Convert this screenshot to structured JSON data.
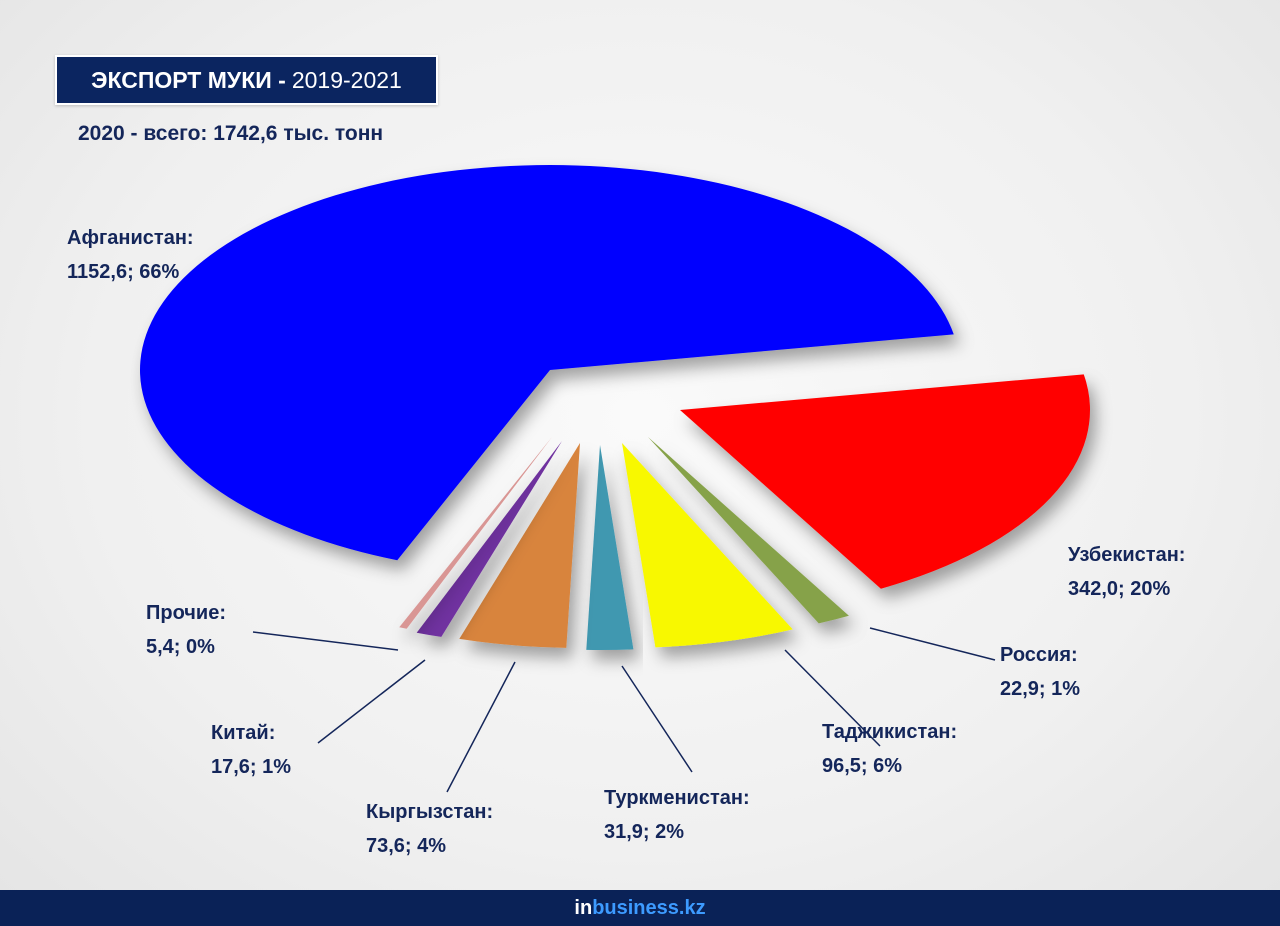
{
  "header": {
    "title_bold": "ЭКСПОРТ МУКИ -",
    "title_years": "2019-2021",
    "subtitle": "2020 - всего: 1742,6 тыс. тонн"
  },
  "chart_data": {
    "type": "pie",
    "title": "ЭКСПОРТ МУКИ - 2019-2021",
    "subtitle": "2020 - всего: 1742,6 тыс. тонн",
    "unit": "тыс. тонн",
    "slices": [
      {
        "name": "Узбекистан:",
        "value": 342.0,
        "value_label": "342,0; 20%",
        "percent": 20,
        "color": "#ff0000"
      },
      {
        "name": "Россия:",
        "value": 22.9,
        "value_label": "22,9; 1%",
        "percent": 1,
        "color": "#86a24a"
      },
      {
        "name": "Таджикистан:",
        "value": 96.5,
        "value_label": "96,5; 6%",
        "percent": 6,
        "color": "#f8f800"
      },
      {
        "name": "Туркменистан:",
        "value": 31.9,
        "value_label": "31,9; 2%",
        "percent": 2,
        "color": "#3f98b0"
      },
      {
        "name": "Кыргызстан:",
        "value": 73.6,
        "value_label": "73,6; 4%",
        "percent": 4,
        "color": "#d8843e"
      },
      {
        "name": "Китай:",
        "value": 17.6,
        "value_label": "17,6; 1%",
        "percent": 1,
        "color": "#7030a0"
      },
      {
        "name": "Прочие:",
        "value": 5.4,
        "value_label": "5,4; 0%",
        "percent": 0,
        "color": "#d99694"
      },
      {
        "name": "Афганистан:",
        "value": 1152.6,
        "value_label": "1152,6; 66%",
        "percent": 66,
        "color": "#0000ff"
      }
    ]
  },
  "footer": {
    "logo_in": "in",
    "logo_rest": "business.kz"
  }
}
